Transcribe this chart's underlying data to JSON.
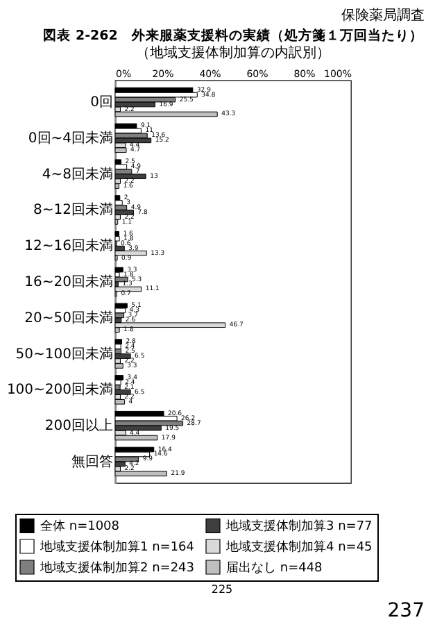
{
  "chart_data": {
    "type": "bar",
    "orientation": "horizontal",
    "title": "図表 2-262　外来服薬支援料の実績（処方箋１万回当たり）",
    "subtitle": "（地域支援体制加算の内訳別）",
    "categories": [
      "0回",
      "0回~4回未満",
      "4~8回未満",
      "8~12回未満",
      "12~16回未満",
      "16~20回未満",
      "20~50回未満",
      "50~100回未満",
      "100~200回未満",
      "200回以上",
      "無回答"
    ],
    "series": [
      {
        "name": "全体 n=1008",
        "color": "#000000",
        "values": [
          32.9,
          9.1,
          2.5,
          2.0,
          1.6,
          3.3,
          5.1,
          2.8,
          3.4,
          20.6,
          16.4
        ]
      },
      {
        "name": "地域支援体制加算1 n=164",
        "color": "#ffffff",
        "values": [
          34.8,
          11.0,
          4.9,
          3.0,
          1.8,
          1.8,
          4.3,
          2.4,
          2.4,
          26.2,
          14.6
        ]
      },
      {
        "name": "地域支援体制加算2 n=243",
        "color": "#7f7f7f",
        "values": [
          25.5,
          13.6,
          7.0,
          4.9,
          0.6,
          5.3,
          3.7,
          2.5,
          2.1,
          28.7,
          9.9
        ]
      },
      {
        "name": "地域支援体制加算3 n=77",
        "color": "#3f3f3f",
        "values": [
          16.9,
          15.2,
          13.0,
          7.8,
          3.9,
          1.3,
          2.6,
          6.5,
          6.5,
          19.5,
          4.2
        ]
      },
      {
        "name": "地域支援体制加算4 n=45",
        "color": "#d9d9d9",
        "values": [
          2.2,
          4.4,
          2.2,
          2.2,
          13.3,
          11.1,
          46.7,
          2.2,
          2.2,
          4.4,
          2.2
        ]
      },
      {
        "name": "届出なし n=448",
        "color": "#bfbfbf",
        "values": [
          43.3,
          4.7,
          1.6,
          1.1,
          0.9,
          0.7,
          1.8,
          3.3,
          4.0,
          17.9,
          21.9
        ]
      }
    ],
    "xlim": [
      0,
      100
    ],
    "xticks": [
      {
        "value": 0,
        "label": "0%"
      },
      {
        "value": 20,
        "label": "20%"
      },
      {
        "value": 40,
        "label": "40%"
      },
      {
        "value": 60,
        "label": "60%"
      },
      {
        "value": 80,
        "label": "80%"
      },
      {
        "value": 100,
        "label": "100%"
      }
    ],
    "data_labels": true,
    "legend": "bottom",
    "grid": false,
    "annotations": [
      "保険薬局調査",
      "225",
      "237"
    ]
  }
}
